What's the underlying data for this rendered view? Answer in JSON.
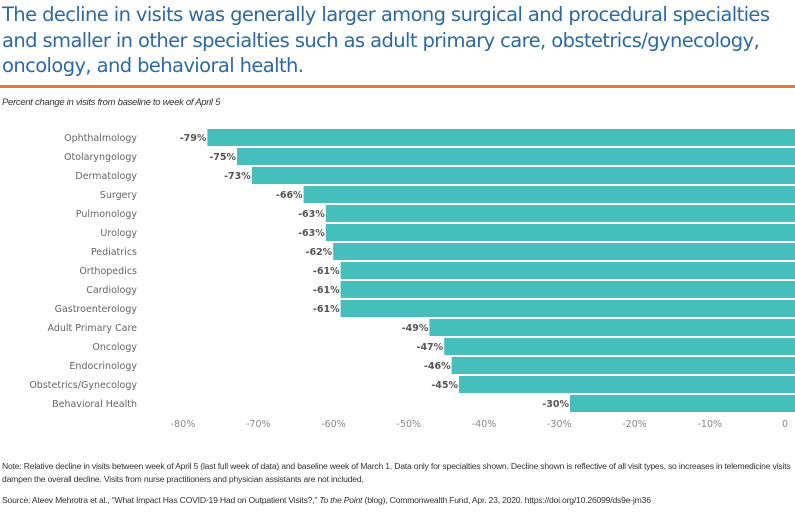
{
  "title": "The decline in visits was generally larger among surgical and procedural specialties and smaller in other specialties such as adult primary care, obstetrics/gynecology, oncology, and behavioral health.",
  "chart_data": {
    "type": "bar",
    "orientation": "horizontal",
    "title": "Percent change in visits from baseline to week of April 5",
    "categories": [
      "Ophthalmology",
      "Otolaryngology",
      "Dermatology",
      "Surgery",
      "Pulmonology",
      "Urology",
      "Pediatrics",
      "Orthopedics",
      "Cardiology",
      "Gastroenterology",
      "Adult Primary Care",
      "Oncology",
      "Endocrinology",
      "Obstetrics/Gynecology",
      "Behavioral Health"
    ],
    "values": [
      -79,
      -75,
      -73,
      -66,
      -63,
      -63,
      -62,
      -61,
      -61,
      -61,
      -49,
      -47,
      -46,
      -45,
      -30
    ],
    "value_labels": [
      "-79%",
      "-75%",
      "-73%",
      "-66%",
      "-63%",
      "-63%",
      "-62%",
      "-61%",
      "-61%",
      "-61%",
      "-49%",
      "-47%",
      "-46%",
      "-45%",
      "-30%"
    ],
    "xlim": [
      -80,
      0
    ],
    "xticks": [
      -80,
      -70,
      -60,
      -50,
      -40,
      -30,
      -20,
      -10,
      0
    ],
    "xtick_labels": [
      "-80%",
      "-70%",
      "-60%",
      "-50%",
      "-40%",
      "-30%",
      "-20%",
      "-10%",
      "0"
    ],
    "xlabel": "",
    "ylabel": "",
    "bar_color": "#45bfbb",
    "grid": false
  },
  "note": "Note: Relative decline in visits between week of April 5 (last full week of data) and baseline week of March 1. Data only for specialties shown. Decline shown is reflective of all visit types, so increases in telemedicine visits dampen the overall decline. Visits from nurse practitioners and physician assistants are not included.",
  "source": {
    "prefix": "Source: Ateev Mehrotra et al., “What Impact Has COVID-19 Had on Outpatient Visits?,” ",
    "publication": "To the Point",
    "suffix": " (blog), Commonwealth Fund, Apr. 23, 2020. https://doi.org/10.26099/ds9e-jm36"
  },
  "colors": {
    "title": "#2d6aa3",
    "rule": "#e9773a"
  }
}
